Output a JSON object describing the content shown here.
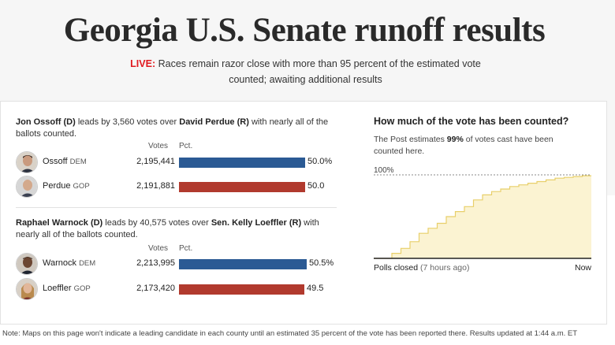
{
  "header": {
    "title": "Georgia U.S. Senate runoff results",
    "live_tag": "LIVE:",
    "live_text": "Races remain razor close with more than 95 percent of the estimated vote counted; awaiting additional results"
  },
  "races": [
    {
      "summary": {
        "leader": "Jon Ossoff (D)",
        "mid": " leads by 3,560 votes over ",
        "trailer": "David Perdue (R)",
        "tail": " with nearly all of the ballots counted."
      },
      "col_votes": "Votes",
      "col_pct": "Pct.",
      "candidates": [
        {
          "name": "Ossoff",
          "party": "DEM",
          "votes": "2,195,441",
          "pct_label": "50.0%",
          "pct": 50.0,
          "side": "dem"
        },
        {
          "name": "Perdue",
          "party": "GOP",
          "votes": "2,191,881",
          "pct_label": "50.0",
          "pct": 50.0,
          "side": "gop"
        }
      ]
    },
    {
      "summary": {
        "leader": "Raphael Warnock (D)",
        "mid": " leads by 40,575 votes over ",
        "trailer": "Sen. Kelly Loeffler (R)",
        "tail": " with nearly all of the ballots counted."
      },
      "col_votes": "Votes",
      "col_pct": "Pct.",
      "candidates": [
        {
          "name": "Warnock",
          "party": "DEM",
          "votes": "2,213,995",
          "pct_label": "50.5%",
          "pct": 50.5,
          "side": "dem"
        },
        {
          "name": "Loeffler",
          "party": "GOP",
          "votes": "2,173,420",
          "pct_label": "49.5",
          "pct": 49.5,
          "side": "gop"
        }
      ]
    }
  ],
  "vote_counted": {
    "title": "How much of the vote has been counted?",
    "text_before": "The Post estimates ",
    "pct_bold": "99%",
    "text_after": " of votes cast have been counted here.",
    "y_label": "100%",
    "x_start_label": "Polls closed",
    "x_start_note": "(7 hours ago)",
    "x_end_label": "Now",
    "progress_steps": [
      0,
      0,
      0.06,
      0.12,
      0.2,
      0.3,
      0.36,
      0.42,
      0.5,
      0.56,
      0.62,
      0.7,
      0.76,
      0.8,
      0.83,
      0.86,
      0.88,
      0.9,
      0.92,
      0.94,
      0.96,
      0.97,
      0.98,
      0.99
    ],
    "colors": {
      "fill": "#fbf3d2",
      "line": "#e8cf6a",
      "axis": "#222222"
    }
  },
  "footnote": "Note: Maps on this page won't indicate a leading candidate in each county until an estimated 35 percent of the vote has been reported there. Results updated at 1:44 a.m. ET",
  "colors": {
    "dem": "#2b5a94",
    "gop": "#b13a2e",
    "live": "#e0191f"
  }
}
